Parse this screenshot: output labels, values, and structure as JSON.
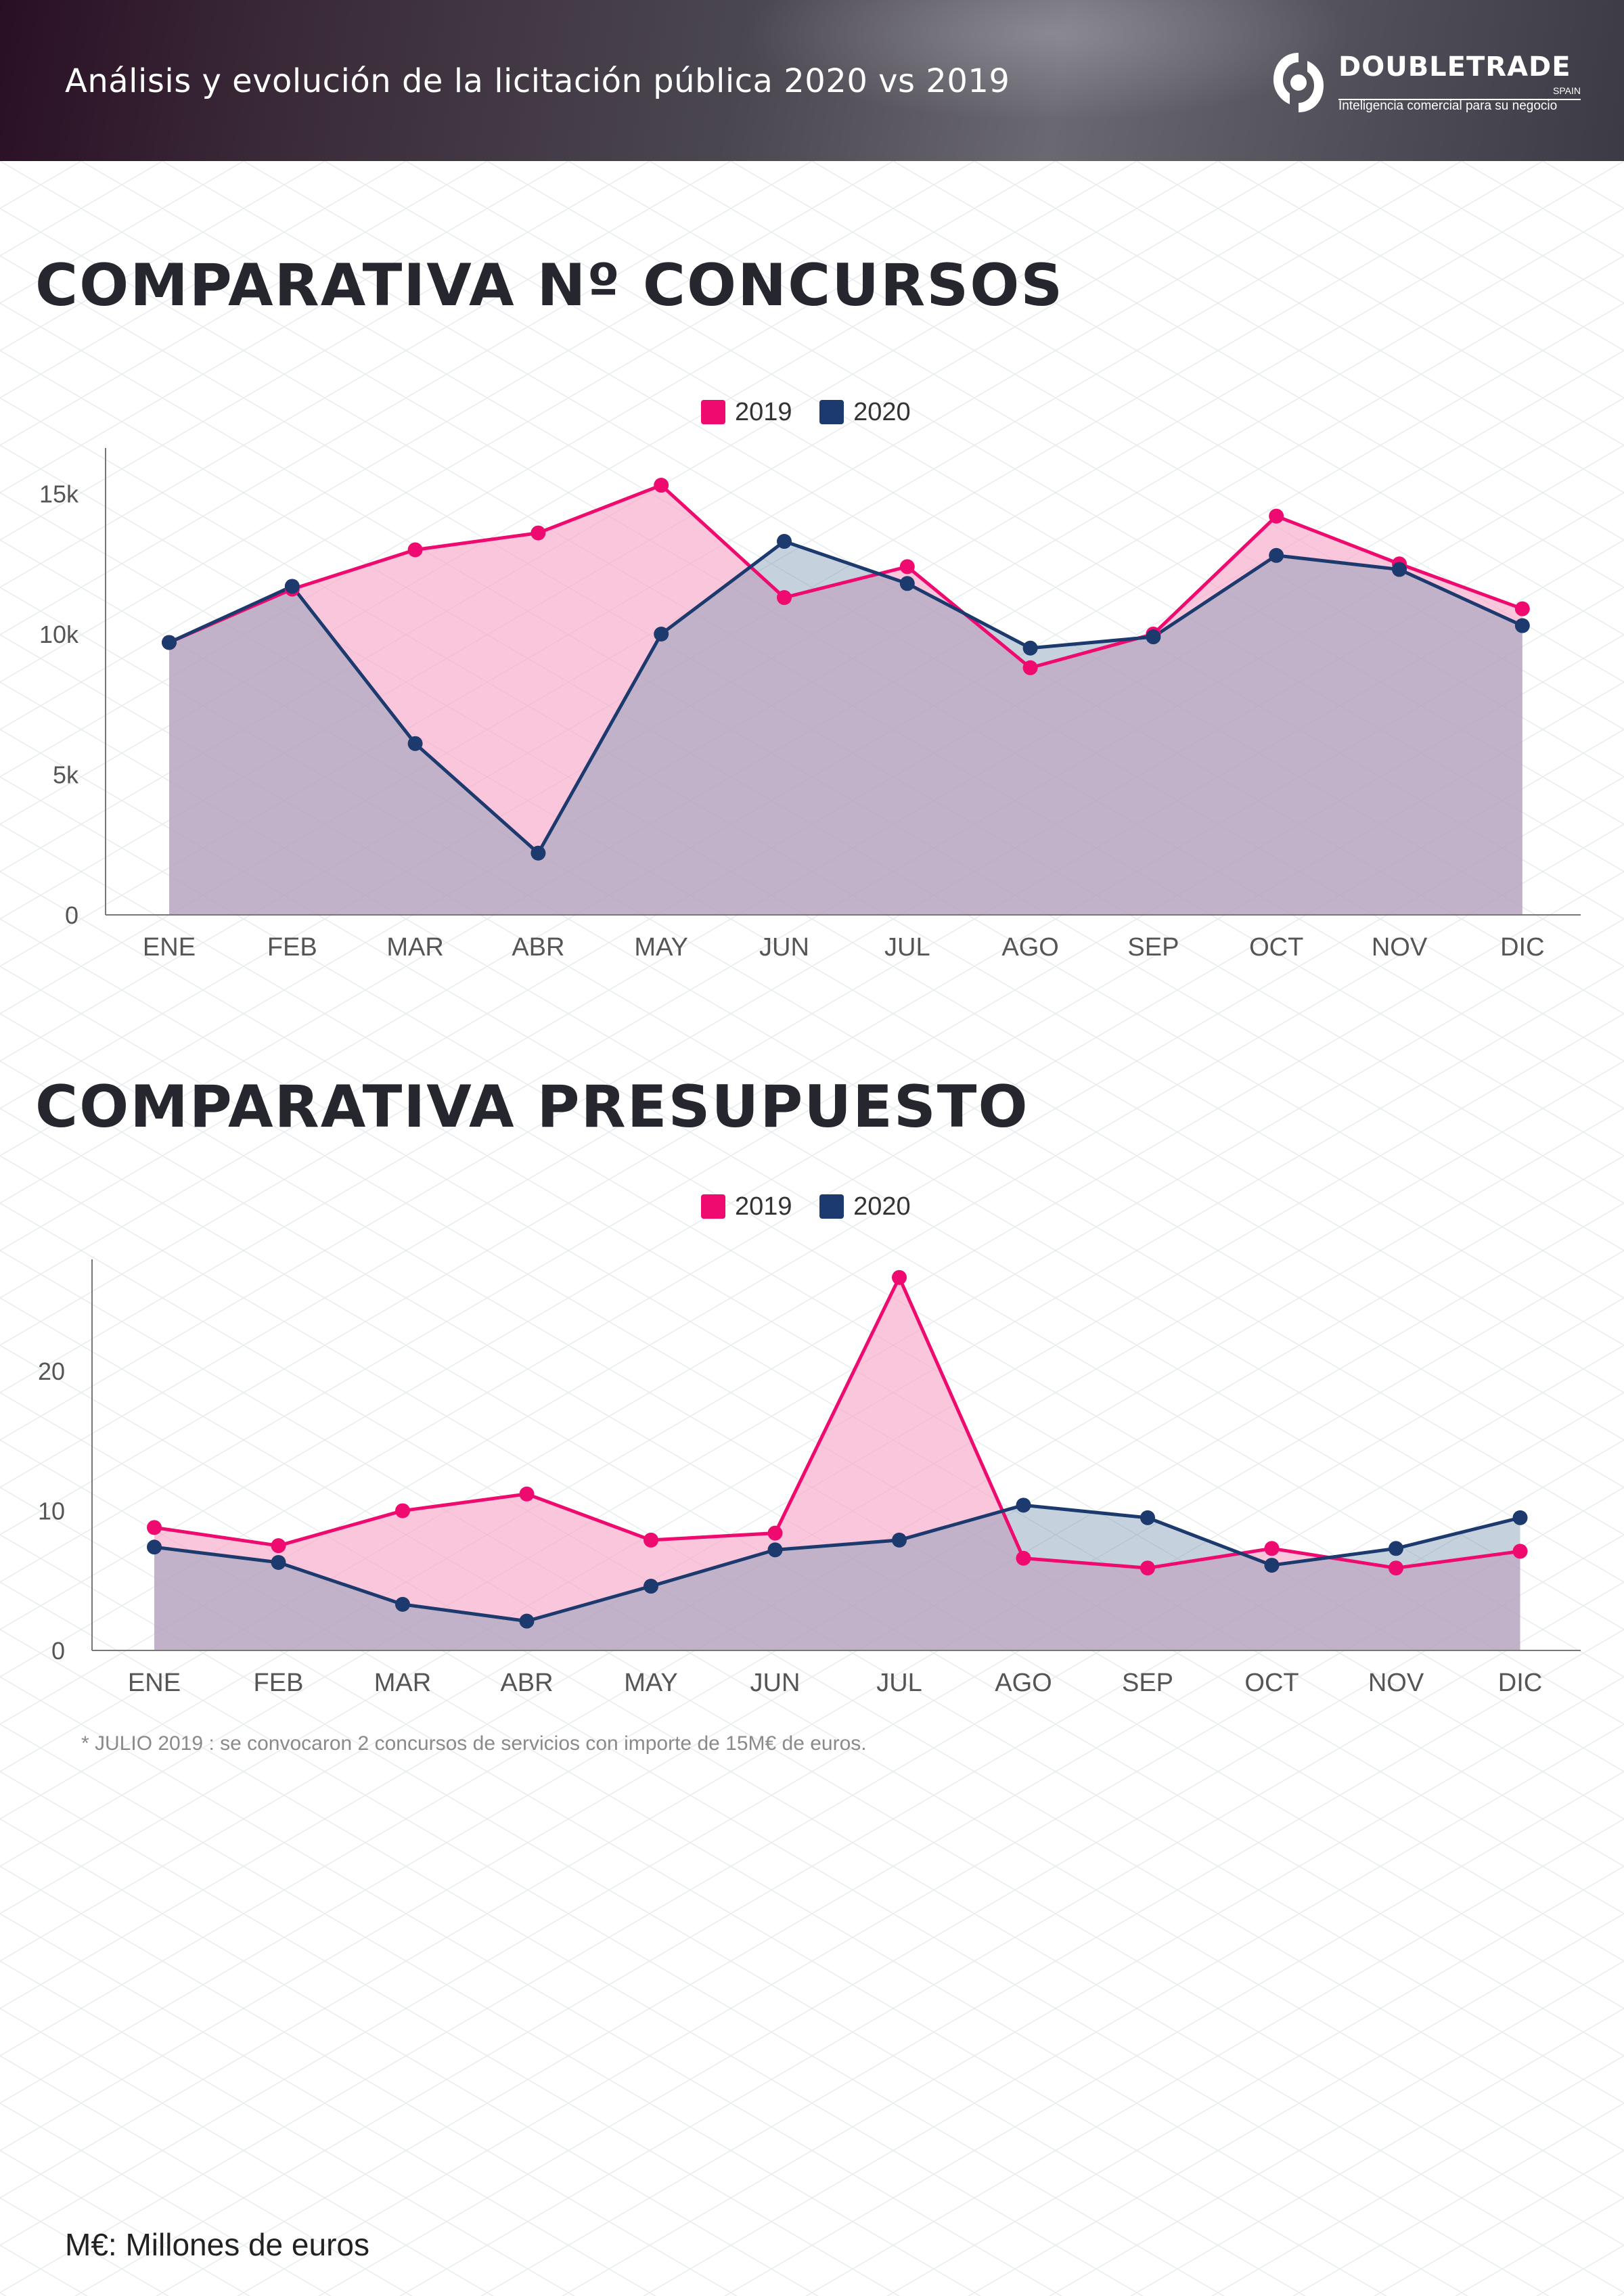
{
  "header": {
    "title": "Análisis y evolución de la licitación pública 2020 vs 2019",
    "logo": {
      "name": "DOUBLETRADE",
      "country": "SPAIN",
      "tagline": "Inteligencia comercial para  su negocio"
    }
  },
  "sections": [
    {
      "title": "COMPARATIVA Nº CONCURSOS"
    },
    {
      "title": "COMPARATIVA PRESUPUESTO"
    }
  ],
  "colors": {
    "series_2019": "#ee0a6e",
    "series_2020": "#1d3a6e",
    "fill_2019": "#f7a8c8",
    "fill_2020": "#7f9ab4",
    "title": "#26262e"
  },
  "chart_data": [
    {
      "type": "area",
      "title": "",
      "categories": [
        "ENE",
        "FEB",
        "MAR",
        "ABR",
        "MAY",
        "JUN",
        "JUL",
        "AGO",
        "SEP",
        "OCT",
        "NOV",
        "DIC"
      ],
      "series": [
        {
          "name": "2019",
          "values": [
            9700,
            11600,
            13000,
            13600,
            15300,
            11300,
            12400,
            8800,
            10000,
            14200,
            12500,
            10900
          ]
        },
        {
          "name": "2020",
          "values": [
            9700,
            11700,
            6100,
            2200,
            10000,
            13300,
            11800,
            9500,
            9900,
            12800,
            12300,
            10300
          ]
        }
      ],
      "ylim": [
        0,
        16000
      ],
      "yticks": [
        0,
        5000,
        10000,
        15000
      ],
      "ytick_labels": [
        "0",
        "5k",
        "10k",
        "15k"
      ],
      "legend": "top-center",
      "grid": false
    },
    {
      "type": "area",
      "title": "",
      "categories": [
        "ENE",
        "FEB",
        "MAR",
        "ABR",
        "MAY",
        "JUN",
        "JUL",
        "AGO",
        "SEP",
        "OCT",
        "NOV",
        "DIC"
      ],
      "series": [
        {
          "name": "2019",
          "values": [
            8.8,
            7.5,
            10.0,
            11.2,
            7.9,
            8.4,
            26.7,
            6.6,
            5.9,
            7.3,
            5.9,
            7.1
          ]
        },
        {
          "name": "2020",
          "values": [
            7.4,
            6.3,
            3.3,
            2.1,
            4.6,
            7.2,
            7.9,
            10.4,
            9.5,
            6.1,
            7.3,
            9.5
          ]
        }
      ],
      "ylim": [
        0,
        28
      ],
      "yticks": [
        0,
        10,
        20
      ],
      "ytick_labels": [
        "0",
        "10",
        "20"
      ],
      "legend": "top-center",
      "grid": false
    }
  ],
  "footnote": "* JULIO 2019 : se convocaron 2 concursos de servicios con importe de 15M€ de euros.",
  "units_note": "M€: Millones de euros"
}
